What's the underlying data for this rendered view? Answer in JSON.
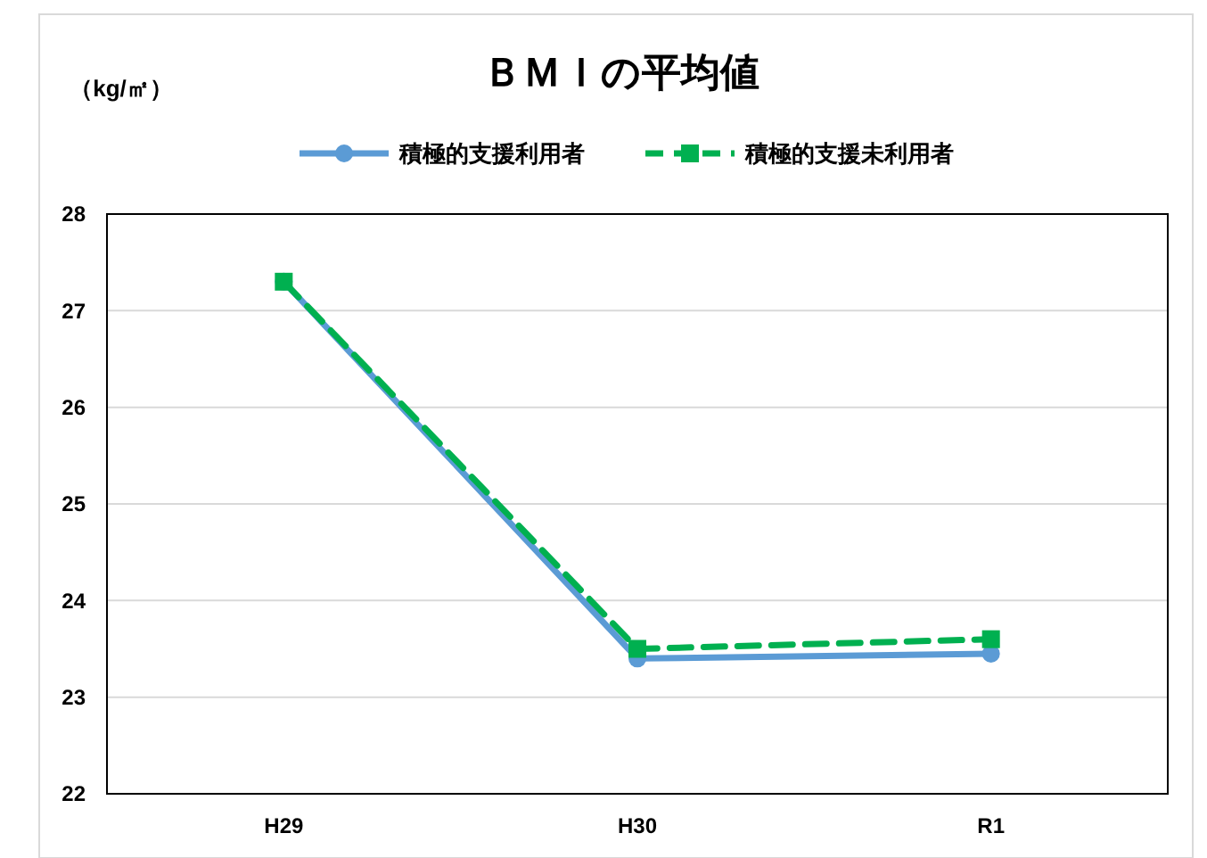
{
  "chart_data": {
    "type": "line",
    "title": "ＢＭＩの平均値",
    "ylabel": "（kg/㎡）",
    "categories": [
      "H29",
      "H30",
      "R1"
    ],
    "series": [
      {
        "name": "積極的支援利用者",
        "color": "#5b9bd5",
        "values": [
          27.3,
          23.4,
          23.45
        ],
        "marker": "circle",
        "line_style": "solid"
      },
      {
        "name": "積極的支援未利用者",
        "color": "#00b050",
        "values": [
          27.3,
          23.5,
          23.6
        ],
        "marker": "square",
        "line_style": "dashed"
      }
    ],
    "ylim": [
      22,
      28
    ],
    "yticks": [
      22,
      23,
      24,
      25,
      26,
      27,
      28
    ],
    "grid": "y",
    "legend": "top"
  }
}
